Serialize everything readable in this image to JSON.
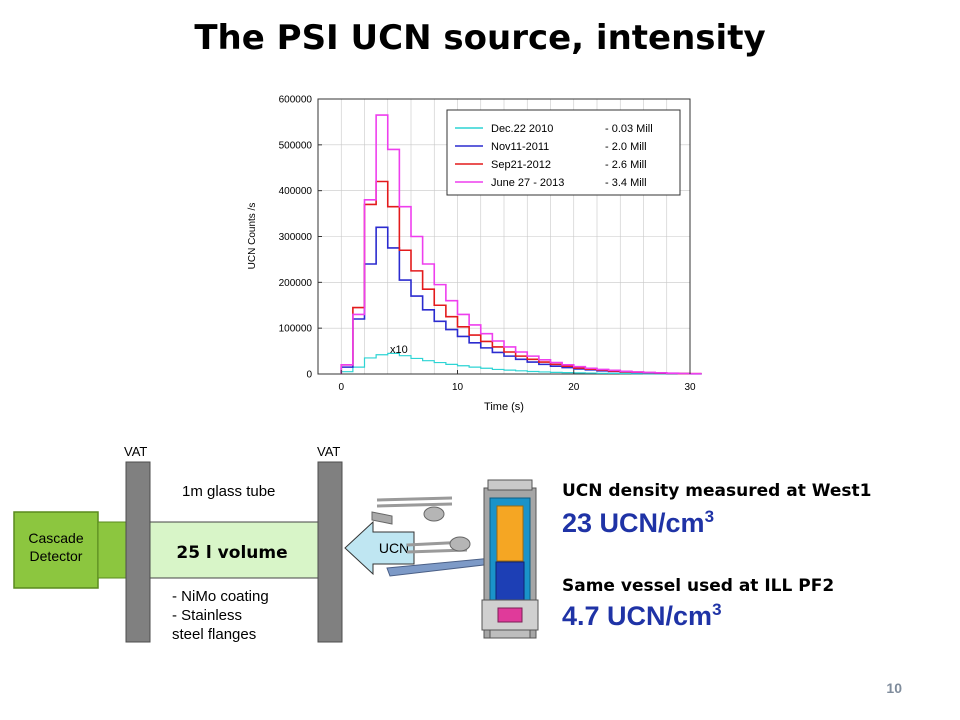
{
  "title": "The PSI UCN source, intensity",
  "page_number": "10",
  "chart_data": {
    "type": "line",
    "xlabel": "Time (s)",
    "ylabel": "UCN Counts /s",
    "xlim": [
      -2,
      30
    ],
    "ylim": [
      0,
      600000
    ],
    "xticks": [
      0,
      10,
      20,
      30
    ],
    "yticks": [
      0,
      100000,
      200000,
      300000,
      400000,
      500000,
      600000
    ],
    "grid": true,
    "legend_position": "top-right",
    "annotation": "x10",
    "x": [
      0,
      1,
      2,
      3,
      4,
      5,
      6,
      7,
      8,
      9,
      10,
      11,
      12,
      13,
      14,
      15,
      16,
      17,
      18,
      19,
      20,
      21,
      22,
      23,
      24,
      25,
      26,
      27,
      28,
      29,
      30
    ],
    "series": [
      {
        "name": "Dec.22 2010",
        "value_text": "- 0.03 Mill",
        "color": "#2dd4d4",
        "values": [
          5000,
          15000,
          35000,
          42000,
          45000,
          40000,
          34000,
          29000,
          25000,
          21000,
          18000,
          15000,
          12500,
          10000,
          8500,
          7000,
          5500,
          4500,
          3500,
          3000,
          2500,
          2000,
          1500,
          1200,
          1000,
          800,
          600,
          500,
          400,
          300,
          200
        ]
      },
      {
        "name": "Nov11-2011",
        "value_text": "- 2.0 Mill",
        "color": "#2b2bcf",
        "values": [
          15000,
          120000,
          240000,
          320000,
          275000,
          205000,
          170000,
          140000,
          115000,
          97000,
          82000,
          68000,
          57000,
          47000,
          39000,
          32000,
          26000,
          21000,
          17000,
          14000,
          11000,
          9000,
          7000,
          5500,
          4500,
          3500,
          2500,
          1800,
          1200,
          800,
          500
        ]
      },
      {
        "name": "Sep21-2012",
        "value_text": "- 2.6 Mill",
        "color": "#e31a1c",
        "values": [
          20000,
          145000,
          370000,
          420000,
          365000,
          270000,
          225000,
          185000,
          150000,
          125000,
          103000,
          85000,
          71000,
          59000,
          48000,
          39000,
          32000,
          26000,
          21000,
          17000,
          13000,
          10500,
          8500,
          6500,
          5000,
          4000,
          3000,
          2200,
          1500,
          1000,
          600
        ]
      },
      {
        "name": "June 27 - 2013",
        "value_text": "- 3.4 Mill",
        "color": "#ee3fee",
        "values": [
          20000,
          130000,
          380000,
          565000,
          490000,
          365000,
          300000,
          240000,
          195000,
          160000,
          130000,
          107000,
          88000,
          72000,
          59000,
          48000,
          39000,
          31000,
          25000,
          20000,
          16000,
          12500,
          10000,
          8000,
          6000,
          4600,
          3500,
          2500,
          1700,
          1100,
          700
        ]
      }
    ]
  },
  "apparatus": {
    "detector_label": [
      "Cascade",
      "Detector"
    ],
    "vat_left": "VAT",
    "vat_right": "VAT",
    "tube_label": "1m glass tube",
    "volume_label": "25 l volume",
    "coating_lines": [
      "- NiMo coating",
      "- Stainless",
      "steel flanges"
    ],
    "ucn_arrow_label": "UCN"
  },
  "info": {
    "west_label": "UCN density measured at West1",
    "west_value": "23 UCN/cm",
    "west_exp": "3",
    "ill_label": "Same vessel used at ILL PF2",
    "ill_value": "4.7 UCN/cm",
    "ill_exp": "3"
  },
  "colors": {
    "detector_green": "#8cc63f",
    "volume_green": "#d8f5c8",
    "vat_gray": "#808080",
    "arrow_fill": "#bfe6f2",
    "info_blue": "#1f33a6"
  }
}
